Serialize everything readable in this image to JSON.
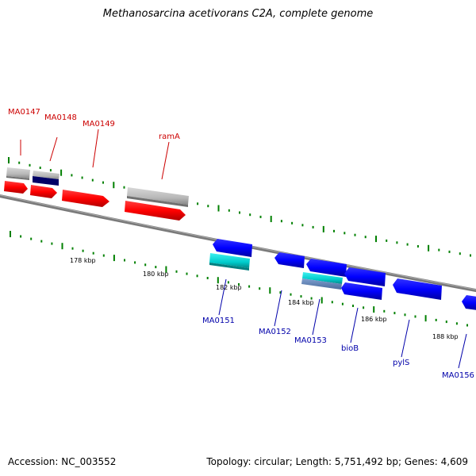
{
  "title": "Methanosarcina acetivorans C2A, complete genome",
  "footer": {
    "accession": "Accession: NC_003552",
    "topology": "Topology: circular; Length: 5,751,492 bp; Genes: 4,609"
  },
  "colors": {
    "forward_strand_label": "#cc0000",
    "reverse_strand_label": "#0000aa",
    "backbone": "#808080",
    "tick": "#008000",
    "gene_red": "#ff0000",
    "gene_blue": "#0000ff",
    "gene_cyan": "#00cccc",
    "gene_gray": "#b8b8b8",
    "gene_navy": "#000066"
  },
  "scale_labels": [
    "178 kbp",
    "180 kbp",
    "182 kbp",
    "184 kbp",
    "186 kbp",
    "188 kbp"
  ],
  "gene_labels": {
    "forward": [
      "MA0147",
      "MA0148",
      "MA0149",
      "ramA"
    ],
    "reverse": [
      "MA0151",
      "MA0152",
      "MA0153",
      "bioB",
      "pylS",
      "MA0156"
    ]
  }
}
